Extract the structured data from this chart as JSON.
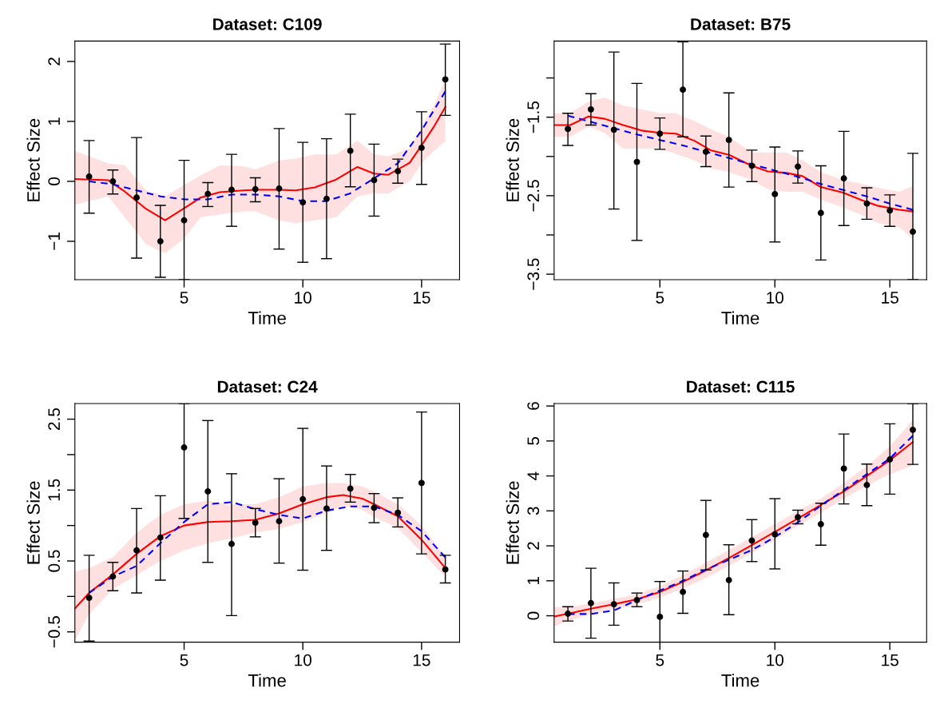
{
  "chart_data": [
    {
      "type": "scatter",
      "title": "Dataset: C109",
      "xlabel": "Time",
      "ylabel": "Effect Size",
      "xlim": [
        0.4,
        16.6
      ],
      "xticks": [
        5,
        10,
        15
      ],
      "ylim": [
        -1.64,
        2.34
      ],
      "yticks": [
        {
          "value": -1,
          "label": "−1"
        },
        0,
        1,
        2
      ],
      "grid": false,
      "series": [
        {
          "type": "line",
          "color": "#ff0000",
          "x": [
            0.4,
            1.8,
            2.5,
            3.4,
            4.2,
            5.0,
            5.7,
            6.5,
            7.5,
            8.0,
            9.0,
            9.7,
            10.5,
            11.4,
            12.3,
            13.0,
            13.6,
            14.5,
            15.0,
            15.5,
            16.0
          ],
          "values": [
            0.04,
            0.02,
            -0.17,
            -0.46,
            -0.65,
            -0.45,
            -0.27,
            -0.18,
            -0.15,
            -0.14,
            -0.14,
            -0.15,
            -0.1,
            0.03,
            0.24,
            0.13,
            0.11,
            0.31,
            0.6,
            0.9,
            1.24
          ],
          "upper": [
            0.51,
            0.3,
            0.27,
            -0.15,
            -0.25,
            -0.06,
            0.1,
            0.27,
            0.25,
            0.2,
            0.35,
            0.38,
            0.45,
            0.45,
            0.68,
            0.45,
            0.42,
            0.55,
            0.9,
            1.25,
            1.7
          ],
          "lower": [
            -0.39,
            -0.25,
            -0.6,
            -1.05,
            -1.2,
            -0.95,
            -0.6,
            -0.55,
            -0.5,
            -0.5,
            -0.65,
            -0.7,
            -0.65,
            -0.6,
            -0.25,
            -0.2,
            -0.2,
            0.0,
            0.3,
            0.5,
            0.67
          ]
        },
        {
          "type": "line",
          "color": "#0000ff",
          "line_style": "dashed",
          "x": [
            1,
            2,
            3,
            4,
            5,
            6,
            7,
            8,
            9,
            10,
            11,
            12,
            13,
            14,
            15,
            16
          ],
          "values": [
            0.0,
            -0.05,
            -0.15,
            -0.25,
            -0.3,
            -0.3,
            -0.22,
            -0.22,
            -0.25,
            -0.33,
            -0.33,
            -0.2,
            0.05,
            0.3,
            0.85,
            1.5
          ]
        },
        {
          "type": "scatter",
          "color": "#000000",
          "marker": "circle",
          "x": [
            1,
            2,
            3,
            4,
            5,
            6,
            7,
            8,
            9,
            10,
            11,
            12,
            13,
            14,
            15,
            16
          ],
          "values": [
            0.08,
            0.0,
            -0.27,
            -1.0,
            -0.65,
            -0.21,
            -0.14,
            -0.13,
            -0.12,
            -0.35,
            -0.29,
            0.51,
            0.02,
            0.17,
            0.56,
            1.7
          ],
          "errors": [
            [
              -0.53,
              0.68
            ],
            [
              -0.21,
              0.19
            ],
            [
              -1.28,
              0.73
            ],
            [
              -1.6,
              -0.4
            ],
            [
              -1.64,
              0.35
            ],
            [
              -0.42,
              -0.02
            ],
            [
              -0.75,
              0.45
            ],
            [
              -0.34,
              0.06
            ],
            [
              -1.13,
              0.88
            ],
            [
              -1.35,
              0.65
            ],
            [
              -1.29,
              0.71
            ],
            [
              -0.09,
              1.12
            ],
            [
              -0.58,
              0.62
            ],
            [
              -0.03,
              0.37
            ],
            [
              -0.05,
              1.16
            ],
            [
              1.1,
              2.29
            ]
          ]
        }
      ]
    },
    {
      "type": "scatter",
      "title": "Dataset: B75",
      "xlabel": "Time",
      "ylabel": "Effect Size",
      "xlim": [
        0.4,
        16.6
      ],
      "xticks": [
        5,
        10,
        15
      ],
      "ylim": [
        -3.57,
        -0.53
      ],
      "yticks": [
        {
          "value": -1,
          "label": null
        },
        {
          "value": -1.5,
          "label": "−1.5"
        },
        {
          "value": -2,
          "label": null
        },
        {
          "value": -2.5,
          "label": "−2.5"
        },
        {
          "value": -3,
          "label": null
        },
        {
          "value": -3.5,
          "label": "−3.5"
        }
      ],
      "grid": false,
      "series": [
        {
          "type": "line",
          "color": "#ff0000",
          "x": [
            0.4,
            1.1,
            1.9,
            2.6,
            3.4,
            4.2,
            5.0,
            5.7,
            6.5,
            7.2,
            8.0,
            9.0,
            9.7,
            10.5,
            11.2,
            12.0,
            12.96,
            13.8,
            14.5,
            15.4,
            16.0
          ],
          "values": [
            -1.6,
            -1.6,
            -1.49,
            -1.52,
            -1.6,
            -1.67,
            -1.7,
            -1.71,
            -1.8,
            -1.92,
            -1.98,
            -2.12,
            -2.19,
            -2.21,
            -2.25,
            -2.39,
            -2.46,
            -2.56,
            -2.63,
            -2.68,
            -2.7
          ],
          "upper": [
            -1.45,
            -1.45,
            -1.3,
            -1.25,
            -1.35,
            -1.4,
            -1.45,
            -1.45,
            -1.55,
            -1.65,
            -1.75,
            -1.95,
            -1.95,
            -1.95,
            -2.05,
            -2.2,
            -2.3,
            -2.35,
            -2.4,
            -2.45,
            -2.38
          ],
          "lower": [
            -1.75,
            -1.75,
            -1.62,
            -1.7,
            -1.9,
            -1.9,
            -1.9,
            -1.97,
            -2.05,
            -2.15,
            -2.2,
            -2.3,
            -2.42,
            -2.45,
            -2.45,
            -2.55,
            -2.65,
            -2.75,
            -2.85,
            -2.9,
            -3.05
          ]
        },
        {
          "type": "line",
          "color": "#0000ff",
          "line_style": "dashed",
          "x": [
            1,
            2,
            3,
            4,
            5,
            6,
            7,
            8,
            9,
            10,
            11,
            12,
            13,
            14,
            15,
            16
          ],
          "values": [
            -1.48,
            -1.56,
            -1.64,
            -1.72,
            -1.79,
            -1.86,
            -1.94,
            -2.02,
            -2.1,
            -2.18,
            -2.26,
            -2.35,
            -2.43,
            -2.51,
            -2.6,
            -2.68
          ]
        },
        {
          "type": "scatter",
          "color": "#000000",
          "marker": "circle",
          "x": [
            1,
            2,
            3,
            4,
            5,
            6,
            7,
            8,
            9,
            10,
            11,
            12,
            13,
            14,
            15,
            16
          ],
          "values": [
            -1.65,
            -1.4,
            -1.66,
            -2.07,
            -1.71,
            -1.15,
            -1.94,
            -1.79,
            -2.12,
            -2.48,
            -2.13,
            -2.72,
            -2.28,
            -2.6,
            -2.69,
            -2.96
          ],
          "errors": [
            [
              -1.86,
              -1.45
            ],
            [
              -1.6,
              -1.2
            ],
            [
              -2.67,
              -0.67
            ],
            [
              -3.07,
              -1.07
            ],
            [
              -1.91,
              -1.51
            ],
            [
              -1.75,
              -0.54
            ],
            [
              -2.13,
              -1.74
            ],
            [
              -2.39,
              -1.19
            ],
            [
              -2.32,
              -1.92
            ],
            [
              -3.09,
              -1.88
            ],
            [
              -2.34,
              -1.93
            ],
            [
              -3.32,
              -2.12
            ],
            [
              -2.88,
              -1.68
            ],
            [
              -2.8,
              -2.4
            ],
            [
              -2.89,
              -2.49
            ],
            [
              -3.57,
              -1.96
            ]
          ]
        }
      ]
    },
    {
      "type": "scatter",
      "title": "Dataset: C24",
      "xlabel": "Time",
      "ylabel": "Effect Size",
      "xlim": [
        0.4,
        16.6
      ],
      "xticks": [
        5,
        10,
        15
      ],
      "ylim": [
        -0.645,
        2.72
      ],
      "yticks": [
        {
          "value": -0.5,
          "label": "−0.5"
        },
        {
          "value": 0,
          "label": null
        },
        0.5,
        {
          "value": 1,
          "label": null
        },
        1.5,
        {
          "value": 2,
          "label": null
        },
        2.5
      ],
      "grid": false,
      "series": [
        {
          "type": "line",
          "color": "#ff0000",
          "x": [
            0.4,
            1,
            2,
            3,
            4,
            5,
            6,
            7,
            8,
            9,
            10,
            11,
            11.7,
            12.5,
            13,
            14,
            15,
            16
          ],
          "values": [
            -0.17,
            0.05,
            0.31,
            0.6,
            0.85,
            1.0,
            1.05,
            1.06,
            1.08,
            1.17,
            1.3,
            1.4,
            1.43,
            1.38,
            1.3,
            1.13,
            0.8,
            0.4
          ],
          "upper": [
            0.35,
            0.4,
            0.55,
            0.9,
            1.15,
            1.3,
            1.35,
            1.3,
            1.3,
            1.4,
            1.55,
            1.6,
            1.6,
            1.55,
            1.48,
            1.3,
            1.0,
            0.55
          ],
          "lower": [
            -0.62,
            -0.25,
            0.1,
            0.3,
            0.5,
            0.65,
            0.75,
            0.82,
            0.9,
            0.95,
            1.05,
            1.18,
            1.28,
            1.22,
            1.12,
            0.97,
            0.62,
            0.28
          ]
        },
        {
          "type": "line",
          "color": "#0000ff",
          "line_style": "dashed",
          "x": [
            1,
            2,
            3,
            4,
            5,
            6,
            7,
            8,
            9,
            10,
            11,
            12,
            13,
            14,
            15,
            16
          ],
          "values": [
            0.05,
            0.28,
            0.43,
            0.75,
            1.05,
            1.3,
            1.33,
            1.23,
            1.15,
            1.1,
            1.21,
            1.27,
            1.27,
            1.15,
            0.92,
            0.55
          ]
        },
        {
          "type": "scatter",
          "color": "#000000",
          "marker": "circle",
          "x": [
            1,
            2,
            3,
            4,
            5,
            6,
            7,
            8,
            9,
            10,
            11,
            12,
            13,
            14,
            15,
            16
          ],
          "values": [
            -0.02,
            0.28,
            0.65,
            0.83,
            2.1,
            1.48,
            0.74,
            1.04,
            1.06,
            1.37,
            1.24,
            1.52,
            1.25,
            1.18,
            1.6,
            0.38
          ],
          "errors": [
            [
              -0.63,
              0.58
            ],
            [
              0.08,
              0.48
            ],
            [
              0.05,
              1.24
            ],
            [
              0.23,
              1.42
            ],
            [
              1.1,
              2.72
            ],
            [
              0.48,
              2.48
            ],
            [
              -0.27,
              1.73
            ],
            [
              0.84,
              1.24
            ],
            [
              0.47,
              1.66
            ],
            [
              0.37,
              2.37
            ],
            [
              0.65,
              1.84
            ],
            [
              1.33,
              1.72
            ],
            [
              1.04,
              1.45
            ],
            [
              0.98,
              1.39
            ],
            [
              0.6,
              2.6
            ],
            [
              0.19,
              0.58
            ]
          ]
        }
      ]
    },
    {
      "type": "scatter",
      "title": "Dataset: C115",
      "xlabel": "Time",
      "ylabel": "Effect Size",
      "xlim": [
        0.4,
        16.6
      ],
      "xticks": [
        5,
        10,
        15
      ],
      "ylim": [
        -0.755,
        6.07
      ],
      "yticks": [
        0,
        1,
        2,
        3,
        4,
        5,
        6
      ],
      "grid": false,
      "series": [
        {
          "type": "line",
          "color": "#ff0000",
          "x": [
            0.4,
            1,
            2,
            3,
            4,
            5,
            6,
            7,
            8,
            9,
            10,
            11,
            12,
            13,
            14,
            15,
            16
          ],
          "values": [
            -0.02,
            0.06,
            0.2,
            0.33,
            0.47,
            0.68,
            0.97,
            1.3,
            1.65,
            2.02,
            2.4,
            2.78,
            3.17,
            3.56,
            4.0,
            4.45,
            4.97
          ],
          "upper": [
            0.25,
            0.25,
            0.35,
            0.48,
            0.62,
            0.85,
            1.17,
            1.52,
            1.88,
            2.25,
            2.62,
            3.0,
            3.35,
            3.8,
            4.28,
            4.85,
            5.6
          ],
          "lower": [
            -0.3,
            -0.15,
            0.05,
            0.18,
            0.32,
            0.52,
            0.78,
            1.08,
            1.42,
            1.8,
            2.18,
            2.57,
            2.95,
            3.35,
            3.72,
            4.05,
            4.3
          ]
        },
        {
          "type": "line",
          "color": "#0000ff",
          "line_style": "dashed",
          "x": [
            1,
            2,
            3,
            4,
            5,
            6,
            7,
            8,
            9,
            10,
            11,
            12,
            13,
            14,
            15,
            16
          ],
          "values": [
            0.05,
            0.05,
            0.15,
            0.45,
            0.72,
            1.0,
            1.32,
            1.6,
            1.88,
            2.25,
            2.67,
            3.15,
            3.6,
            4.05,
            4.5,
            5.15
          ]
        },
        {
          "type": "scatter",
          "color": "#000000",
          "marker": "circle",
          "x": [
            1,
            2,
            3,
            4,
            5,
            6,
            7,
            8,
            9,
            10,
            11,
            12,
            13,
            14,
            15,
            16
          ],
          "values": [
            0.06,
            0.36,
            0.33,
            0.45,
            -0.03,
            0.68,
            2.31,
            1.02,
            2.15,
            2.33,
            2.82,
            2.62,
            4.21,
            3.74,
            4.47,
            5.32
          ],
          "errors": [
            [
              -0.15,
              0.26
            ],
            [
              -0.64,
              1.36
            ],
            [
              -0.27,
              0.94
            ],
            [
              0.26,
              0.65
            ],
            [
              -0.755,
              0.98
            ],
            [
              0.07,
              1.28
            ],
            [
              1.31,
              3.3
            ],
            [
              0.03,
              2.03
            ],
            [
              1.55,
              2.75
            ],
            [
              1.34,
              3.35
            ],
            [
              2.63,
              3.02
            ],
            [
              2.02,
              3.22
            ],
            [
              3.2,
              5.2
            ],
            [
              3.15,
              4.34
            ],
            [
              3.48,
              5.49
            ],
            [
              4.33,
              6.07
            ]
          ]
        }
      ]
    }
  ]
}
